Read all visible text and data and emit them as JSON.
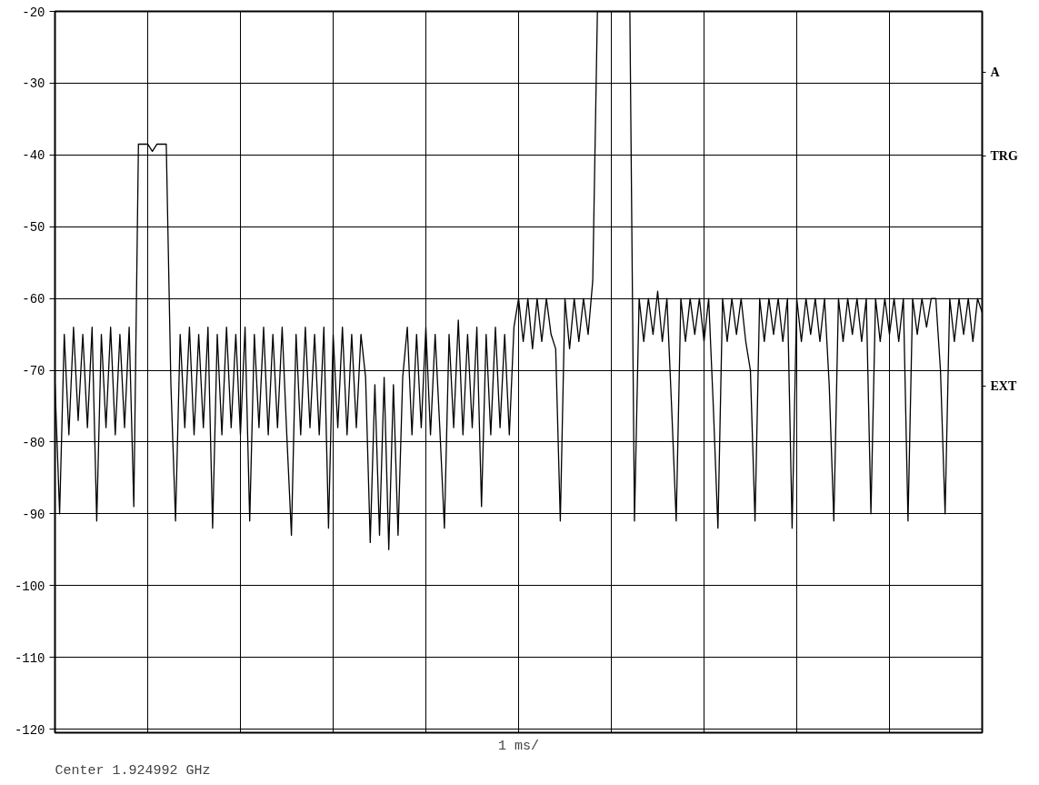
{
  "chart_data": {
    "type": "line",
    "annotations": [
      "Center 1.924992 GHz",
      "1 ms/",
      "A",
      "TRG",
      "EXT"
    ],
    "categories": [
      null,
      null,
      null,
      null,
      null,
      null,
      null,
      null,
      null,
      null,
      null,
      null,
      null,
      null,
      null,
      null,
      null,
      null,
      null,
      null,
      null,
      null,
      null,
      null,
      null,
      null,
      null,
      null,
      null,
      null,
      null,
      null,
      null,
      null,
      null,
      null,
      null,
      null,
      null,
      null,
      null,
      null,
      null,
      null,
      null,
      null,
      null,
      null,
      null,
      null,
      null,
      null,
      null,
      null,
      null,
      null,
      null,
      null,
      null,
      null,
      null,
      null,
      null,
      null,
      null,
      null,
      null,
      null,
      null,
      null,
      null,
      null,
      null,
      null,
      null,
      null,
      null,
      null,
      null,
      null,
      null,
      null,
      null,
      null,
      null,
      null,
      null,
      null,
      null,
      null,
      null,
      null,
      null,
      null,
      null,
      null,
      null,
      null,
      null,
      null,
      null,
      null,
      null,
      null,
      null,
      null,
      null,
      null,
      null,
      null,
      null,
      null,
      null,
      null,
      null,
      null,
      null,
      null,
      null,
      null,
      null,
      null,
      null,
      null,
      null,
      null,
      null,
      null,
      null,
      null,
      null,
      null,
      null,
      null,
      null,
      null,
      null,
      null,
      null,
      null,
      null,
      null,
      null,
      null,
      null,
      null,
      null,
      null,
      null,
      null,
      null,
      null,
      null,
      null,
      null,
      null,
      null,
      null,
      null,
      null,
      null,
      null,
      null,
      null,
      null,
      null,
      null,
      null,
      null,
      null,
      null,
      null,
      null,
      null,
      null,
      null,
      null,
      null,
      null,
      null,
      null,
      null,
      null,
      null,
      null,
      null,
      null,
      null,
      null,
      null,
      null,
      null,
      null,
      null,
      null,
      null,
      null,
      null,
      null,
      null,
      null
    ],
    "ylim": [
      -120.5,
      -20
    ],
    "yticks": [
      -20,
      -30,
      -40,
      -50,
      -60,
      -70,
      -80,
      -90,
      -100,
      -110,
      -120
    ],
    "tick_labels": "y",
    "grid": true,
    "marker": "none",
    "line_style": "solid",
    "series": [
      {
        "color": "#000000",
        "values": [
          -72,
          -90,
          -65,
          -79,
          -64,
          -77,
          -65,
          -78,
          -64,
          -91,
          -65,
          -78,
          -64,
          -79,
          -65,
          -78,
          -64,
          -89,
          -38.5,
          -38.5,
          -38.5,
          -39.5,
          -38.5,
          -38.5,
          -38.5,
          -72,
          -91,
          -65,
          -78,
          -64,
          -79,
          -65,
          -78,
          -64,
          -92,
          -65,
          -79,
          -64,
          -78,
          -65,
          -79,
          -64,
          -91,
          -65,
          -78,
          -64,
          -79,
          -65,
          -78,
          -64,
          -79,
          -93,
          -65,
          -79,
          -64,
          -78,
          -65,
          -79,
          -64,
          -92,
          -65,
          -78,
          -64,
          -79,
          -65,
          -78,
          -65,
          -71,
          -94,
          -72,
          -93,
          -71,
          -95,
          -72,
          -93,
          -71,
          -64,
          -79,
          -65,
          -78,
          -64,
          -79,
          -65,
          -78,
          -92,
          -65,
          -78,
          -63,
          -79,
          -65,
          -78,
          -64,
          -89,
          -65,
          -79,
          -64,
          -78,
          -65,
          -79,
          -64,
          -60,
          -66,
          -60,
          -67,
          -60,
          -66,
          -60,
          -65,
          -67,
          -91,
          -60,
          -67,
          -60,
          -66,
          -60,
          -65,
          -57.5,
          -20,
          -20,
          -20,
          -20,
          -20,
          -20,
          -20,
          -20,
          -91,
          -60,
          -66,
          -60,
          -65,
          -59,
          -66,
          -60,
          -75,
          -91,
          -60,
          -66,
          -60,
          -65,
          -60,
          -66,
          -60,
          -75,
          -92,
          -60,
          -66,
          -60,
          -65,
          -60,
          -66,
          -70,
          -91,
          -60,
          -66,
          -60,
          -65,
          -60,
          -66,
          -60,
          -92,
          -60,
          -66,
          -60,
          -65,
          -60,
          -66,
          -60,
          -72,
          -91,
          -60,
          -66,
          -60,
          -65,
          -60,
          -66,
          -60,
          -90,
          -60,
          -66,
          -60,
          -65,
          -60,
          -66,
          -60,
          -91,
          -60,
          -65,
          -60,
          -64,
          -60,
          -60,
          -70,
          -90,
          -60,
          -66,
          -60,
          -65,
          -60,
          -66,
          -60,
          -62
        ]
      }
    ]
  }
}
